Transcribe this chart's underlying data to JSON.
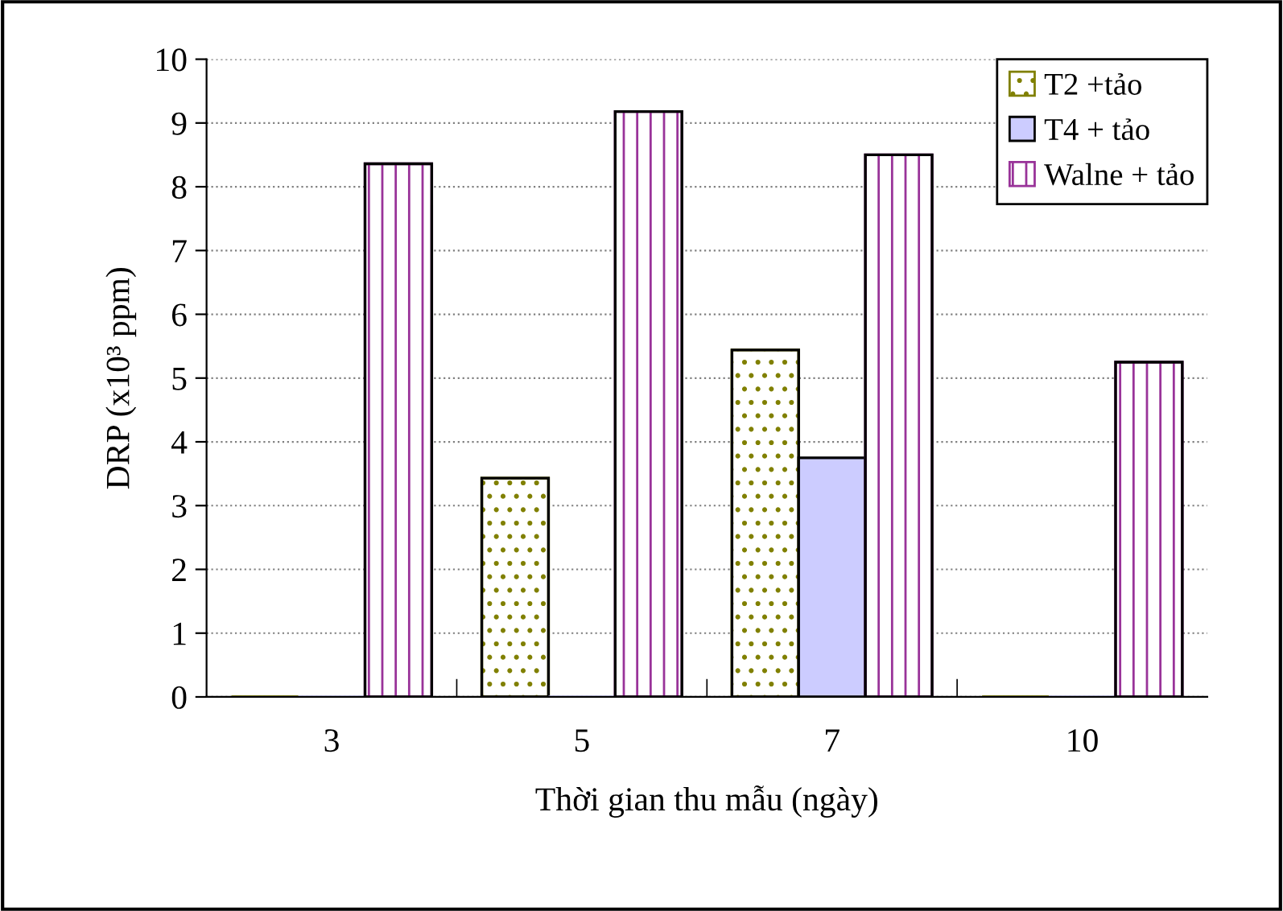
{
  "chart_data": {
    "type": "bar",
    "xlabel": "Thời gian thu mẫu (ngày)",
    "ylabel": "DRP (x10³ ppm)",
    "categories": [
      "3",
      "5",
      "7",
      "10"
    ],
    "series": [
      {
        "name": "T2 +tảo",
        "color": "#808000",
        "values": [
          0,
          3.43,
          5.44,
          0
        ]
      },
      {
        "name": "T4 + tảo",
        "color": "#ccccff",
        "values": [
          0,
          0,
          3.75,
          0
        ]
      },
      {
        "name": "Walne + tảo",
        "color": "#993399",
        "values": [
          8.36,
          9.18,
          8.5,
          5.25
        ]
      }
    ],
    "ylim": [
      0,
      10
    ],
    "yticks": [
      0,
      1,
      2,
      3,
      4,
      5,
      6,
      7,
      8,
      9,
      10
    ],
    "grid": "y",
    "legend": "top right"
  }
}
